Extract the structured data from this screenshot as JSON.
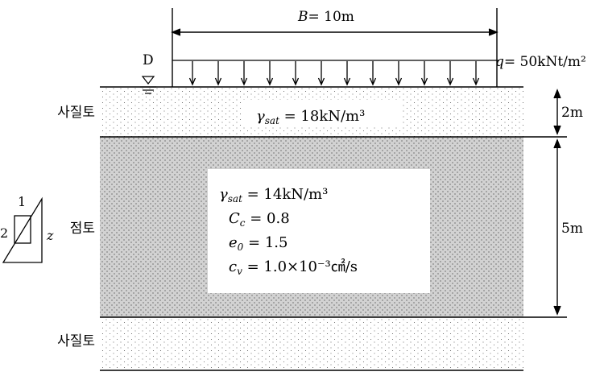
{
  "footing": {
    "width_label": "B= 10m",
    "load_label": "q= 50kNt/m²",
    "water_mark": "D"
  },
  "layers": [
    {
      "name": "사질토",
      "thickness_label": "2m",
      "props": [
        {
          "sym": "γ",
          "sub": "sat",
          "rest": " = 18kN/m³"
        }
      ]
    },
    {
      "name": "점토",
      "thickness_label": "5m",
      "props": [
        {
          "sym": "γ",
          "sub": "sat",
          "rest": " = 14kN/m³"
        },
        {
          "sym": "C",
          "sub": "c",
          "rest": " = 0.8"
        },
        {
          "sym": "e",
          "sub": "0",
          "rest": " = 1.5"
        },
        {
          "sym": "c",
          "sub": "v",
          "rest": " = 1.0×10⁻³㎠/s"
        }
      ]
    },
    {
      "name": "사질토"
    }
  ],
  "slope": {
    "top": "1",
    "left": "2",
    "right": "z"
  },
  "colors": {
    "sand": "#ffffff",
    "clay": "#d2d2d2",
    "line": "#000000"
  }
}
